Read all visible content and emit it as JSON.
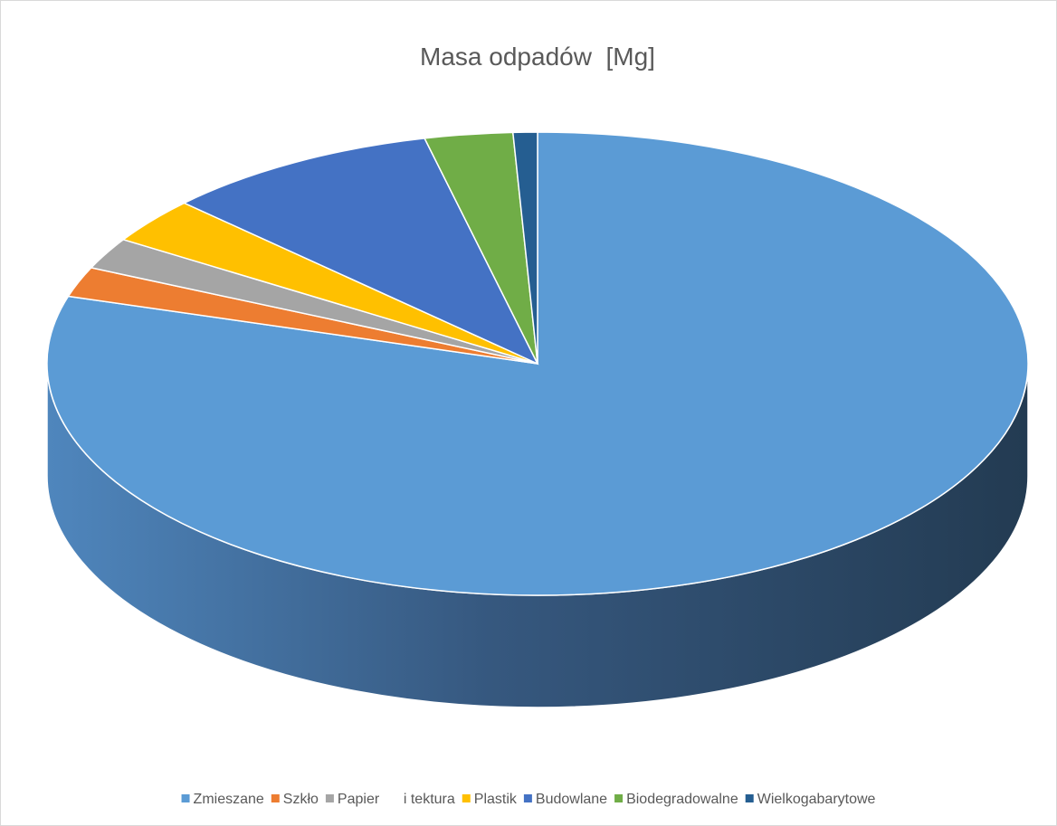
{
  "chart_data": {
    "type": "pie3d",
    "title": "Masa odpadów  [Mg]",
    "categories": [
      "Zmieszane",
      "Szkło",
      "Papier      i tektura",
      "Plastik",
      "Budowlane",
      "Biodegradowalne",
      "Wielkogabarytowe"
    ],
    "values": [
      79.7,
      2.1,
      2.2,
      3.2,
      9.1,
      2.9,
      0.8
    ],
    "colors": [
      "#5b9bd5",
      "#ed7d31",
      "#a5a5a5",
      "#ffc000",
      "#4472c4",
      "#70ad47",
      "#255e91"
    ],
    "legend": "bottom"
  }
}
